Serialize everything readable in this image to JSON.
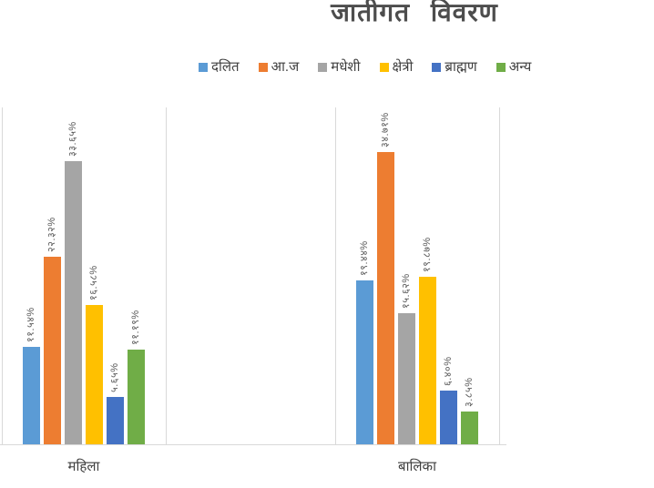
{
  "title": "जातीगत विवरण",
  "legend": [
    {
      "key": "dalit",
      "label": "दलित",
      "color": "#5B9BD5"
    },
    {
      "key": "aaja",
      "label": "आ.ज",
      "color": "#ED7D31"
    },
    {
      "key": "madheshi",
      "label": "मधेशी",
      "color": "#A5A5A5"
    },
    {
      "key": "kshetri",
      "label": "क्षेत्री",
      "color": "#FFC000"
    },
    {
      "key": "brahman",
      "label": "ब्राह्मण",
      "color": "#4472C4"
    },
    {
      "key": "anya",
      "label": "अन्य",
      "color": "#70AD47"
    }
  ],
  "chart_data": {
    "type": "bar",
    "title": "जातीगत विवरण",
    "categories": [
      "महिला",
      "बालिका"
    ],
    "category_keys": [
      "mahila",
      "balika"
    ],
    "series": [
      {
        "key": "dalit",
        "name": "दलित",
        "color": "#5B9BD5",
        "values": [
          11.54,
          19.44
        ],
        "labels": [
          "११.५४%",
          "१९.४४%"
        ]
      },
      {
        "key": "aaja",
        "name": "आ.ज",
        "color": "#ED7D31",
        "values": [
          22.32,
          34.71
        ],
        "labels": [
          "२२.३२%",
          "३४.७१%"
        ]
      },
      {
        "key": "madheshi",
        "name": "मधेशी",
        "color": "#A5A5A5",
        "values": [
          33.65,
          15.62
        ],
        "labels": [
          "३३.६५%",
          "१५.६२%"
        ]
      },
      {
        "key": "kshetri",
        "name": "क्षेत्री",
        "color": "#FFC000",
        "values": [
          16.58,
          19.87
        ],
        "labels": [
          "१६.५८%",
          "१९.८७%"
        ]
      },
      {
        "key": "brahman",
        "name": "ब्राह्मण",
        "color": "#4472C4",
        "values": [
          5.65,
          6.4
        ],
        "labels": [
          "५.६५%",
          "६.४०%"
        ]
      },
      {
        "key": "anya",
        "name": "अन्य",
        "color": "#70AD47",
        "values": [
          11.19,
          3.85
        ],
        "labels": [
          "११.१९%",
          "३.८५%"
        ]
      }
    ],
    "ylim": [
      0,
      40
    ],
    "y_axis_visible": false,
    "grid": "vertical-category-separators",
    "legend_position": "top",
    "data_label_rotation": -90,
    "data_label_numerals": "devanagari",
    "data_label_suffix": "%"
  }
}
